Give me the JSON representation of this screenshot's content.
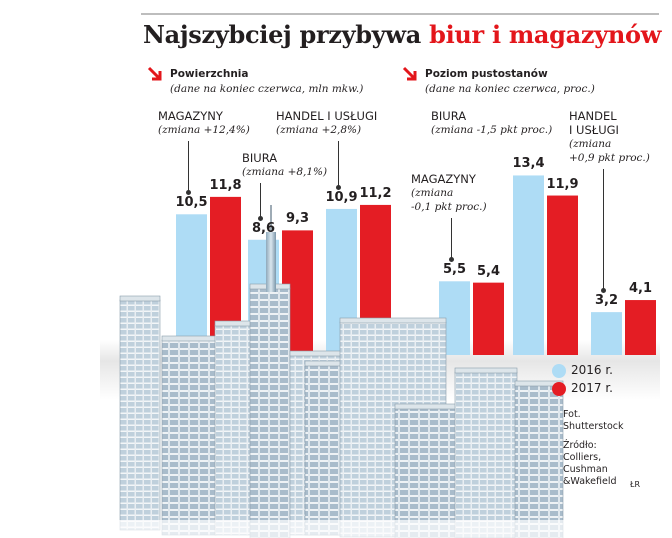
{
  "title": {
    "main": "Najszybciej przybywa",
    "accent": "biur i magazynów"
  },
  "colors": {
    "y2016": "#aedcf5",
    "y2017": "#e41d24",
    "accent": "#e3161b"
  },
  "legend": {
    "y2016": "2016 r.",
    "y2017": "2017 r."
  },
  "credit": {
    "photo": [
      "Fot.",
      "Shutterstock"
    ],
    "source": [
      "Źródło:",
      "Colliers,",
      "Cushman",
      "&Wakefield"
    ],
    "tag": "ŁR"
  },
  "sections": [
    {
      "title": "Powierzchnia",
      "subtitle": "(dane na koniec czerwca, mln mkw.)"
    },
    {
      "title": "Poziom pustostanów",
      "subtitle": "(dane na koniec czerwca, proc.)"
    }
  ],
  "chart_data": [
    {
      "type": "bar",
      "title": "Powierzchnia",
      "subtitle": "(dane na koniec czerwca, mln mkw.)",
      "series_names": [
        "2016 r.",
        "2017 r."
      ],
      "categories": [
        {
          "name": [
            "MAGAZYNY"
          ],
          "change": [
            "(zmiana +12,4%)"
          ],
          "values": [
            10.5,
            11.8
          ],
          "labels": [
            "10,5",
            "11,8"
          ]
        },
        {
          "name": [
            "BIURA"
          ],
          "change": [
            "(zmiana +8,1%)"
          ],
          "values": [
            8.6,
            9.3
          ],
          "labels": [
            "8,6",
            "9,3"
          ]
        },
        {
          "name": [
            "HANDEL I USŁUGI"
          ],
          "change": [
            "(zmiana +2,8%)"
          ],
          "values": [
            10.9,
            11.2
          ],
          "labels": [
            "10,9",
            "11,2"
          ]
        }
      ]
    },
    {
      "type": "bar",
      "title": "Poziom pustostanów",
      "subtitle": "(dane na koniec czerwca, proc.)",
      "series_names": [
        "2016 r.",
        "2017 r."
      ],
      "categories": [
        {
          "name": [
            "MAGAZYNY"
          ],
          "change": [
            "(zmiana",
            "-0,1 pkt proc.)"
          ],
          "values": [
            5.5,
            5.4
          ],
          "labels": [
            "5,5",
            "5,4"
          ]
        },
        {
          "name": [
            "BIURA"
          ],
          "change": [
            "(zmiana -1,5 pkt proc.)"
          ],
          "values": [
            13.4,
            11.9
          ],
          "labels": [
            "13,4",
            "11,9"
          ]
        },
        {
          "name": [
            "HANDEL",
            "I USŁUGI"
          ],
          "change": [
            "(zmiana",
            "+0,9 pkt proc.)"
          ],
          "values": [
            3.2,
            4.1
          ],
          "labels": [
            "3,2",
            "4,1"
          ]
        }
      ]
    }
  ]
}
